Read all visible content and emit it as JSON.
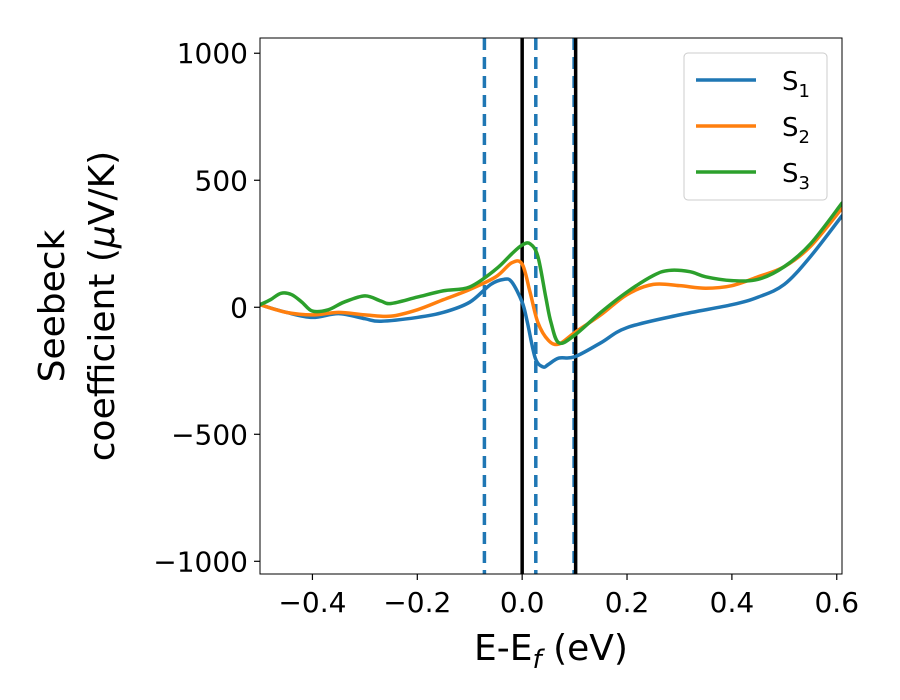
{
  "chart_data": {
    "type": "line",
    "xlabel": {
      "main": "E-E",
      "sub": "f",
      "tail": " (eV)"
    },
    "ylabel": {
      "line1": "Seebeck",
      "line2_pre": "coefficient  (",
      "line2_mu": "μ",
      "line2_post": "V/K)"
    },
    "xlim": [
      -0.5,
      0.61
    ],
    "ylim": [
      -1050,
      1060
    ],
    "xticks": [
      -0.4,
      -0.2,
      0.0,
      0.2,
      0.4,
      0.6
    ],
    "xtick_labels": [
      "−0.4",
      "−0.2",
      "0.0",
      "0.2",
      "0.4",
      "0.6"
    ],
    "yticks": [
      1000,
      500,
      0,
      -500,
      -1000
    ],
    "ytick_labels": [
      "1000",
      "500",
      "0",
      "−500",
      "−1000"
    ],
    "grid": false,
    "legend_position": "top-right",
    "vlines": [
      {
        "x": -0.072,
        "style": "dashed",
        "color": "#1f77b4"
      },
      {
        "x": 0.0,
        "style": "solid",
        "color": "#000000"
      },
      {
        "x": 0.026,
        "style": "dashed",
        "color": "#1f77b4"
      },
      {
        "x": 0.099,
        "style": "dashed",
        "color": "#1f77b4"
      },
      {
        "x": 0.102,
        "style": "solid",
        "color": "#000000"
      }
    ],
    "series": [
      {
        "name": "S",
        "sub": "1",
        "color": "#1f77b4",
        "x": [
          -0.5,
          -0.45,
          -0.4,
          -0.35,
          -0.3,
          -0.27,
          -0.2,
          -0.15,
          -0.1,
          -0.06,
          -0.035,
          -0.02,
          0.0,
          0.01,
          0.025,
          0.04,
          0.05,
          0.07,
          0.1,
          0.15,
          0.2,
          0.3,
          0.4,
          0.45,
          0.5,
          0.55,
          0.61
        ],
        "y": [
          10,
          -20,
          -40,
          -25,
          -45,
          -55,
          -40,
          -20,
          20,
          90,
          110,
          100,
          20,
          -60,
          -200,
          -235,
          -225,
          -200,
          -195,
          -140,
          -80,
          -30,
          10,
          40,
          90,
          200,
          360
        ]
      },
      {
        "name": "S",
        "sub": "2",
        "color": "#ff7f0e",
        "x": [
          -0.5,
          -0.45,
          -0.4,
          -0.35,
          -0.3,
          -0.25,
          -0.2,
          -0.15,
          -0.1,
          -0.05,
          -0.02,
          0.0,
          0.015,
          0.03,
          0.05,
          0.07,
          0.1,
          0.15,
          0.2,
          0.25,
          0.3,
          0.35,
          0.4,
          0.45,
          0.5,
          0.55,
          0.61
        ],
        "y": [
          10,
          -20,
          -30,
          -20,
          -30,
          -35,
          -10,
          30,
          70,
          120,
          175,
          170,
          60,
          -60,
          -130,
          -145,
          -100,
          -30,
          50,
          90,
          85,
          75,
          85,
          120,
          160,
          240,
          390
        ]
      },
      {
        "name": "S",
        "sub": "3",
        "color": "#2ca02c",
        "x": [
          -0.5,
          -0.48,
          -0.46,
          -0.44,
          -0.42,
          -0.4,
          -0.37,
          -0.34,
          -0.3,
          -0.27,
          -0.25,
          -0.2,
          -0.15,
          -0.1,
          -0.05,
          -0.02,
          0.0,
          0.015,
          0.03,
          0.045,
          0.055,
          0.07,
          0.1,
          0.15,
          0.2,
          0.25,
          0.28,
          0.32,
          0.35,
          0.4,
          0.45,
          0.5,
          0.55,
          0.61
        ],
        "y": [
          10,
          30,
          55,
          50,
          20,
          -15,
          -10,
          20,
          45,
          25,
          15,
          40,
          65,
          80,
          150,
          210,
          245,
          250,
          200,
          40,
          -60,
          -140,
          -110,
          -20,
          60,
          125,
          145,
          140,
          120,
          105,
          110,
          160,
          250,
          410
        ]
      }
    ]
  }
}
